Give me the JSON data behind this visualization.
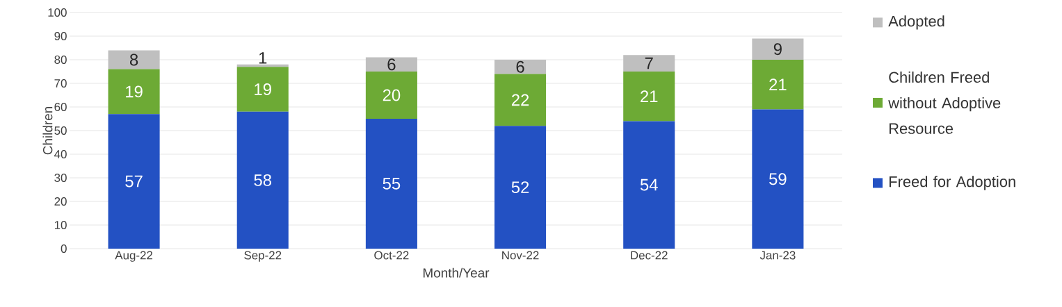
{
  "chart_data": {
    "type": "bar",
    "stacked": true,
    "xlabel": "Month/Year",
    "ylabel": "Children",
    "categories": [
      "Aug-22",
      "Sep-22",
      "Oct-22",
      "Nov-22",
      "Dec-22",
      "Jan-23"
    ],
    "series": [
      {
        "name": "Freed for Adoption",
        "color": "#2351c3",
        "values": [
          57,
          58,
          55,
          52,
          54,
          59
        ]
      },
      {
        "name": "Children Freed without Adoptive Resource",
        "color": "#6daa35",
        "values": [
          19,
          19,
          20,
          22,
          21,
          21
        ]
      },
      {
        "name": "Adopted",
        "color": "#bfbfbf",
        "values": [
          8,
          1,
          6,
          6,
          7,
          9
        ]
      }
    ],
    "ylim": [
      0,
      100
    ],
    "yticks": [
      0,
      10,
      20,
      30,
      40,
      50,
      60,
      70,
      80,
      90,
      100
    ],
    "grid": "y",
    "legend": "right",
    "data_labels": true
  }
}
